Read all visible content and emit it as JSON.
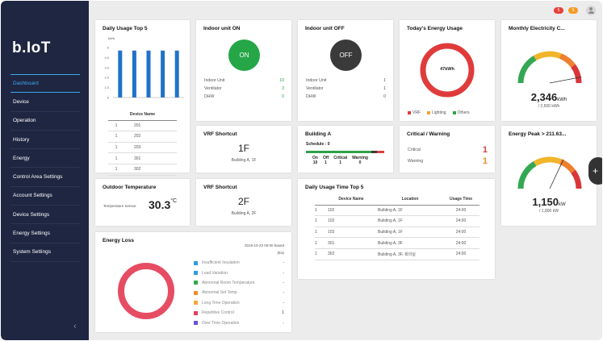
{
  "app": {
    "logo": "b.IoT"
  },
  "sidebar": {
    "items": [
      {
        "label": "Dashboard",
        "active": true
      },
      {
        "label": "Device"
      },
      {
        "label": "Operation"
      },
      {
        "label": "History"
      },
      {
        "label": "Energy"
      },
      {
        "label": "Control Area Settings"
      },
      {
        "label": "Account Settings"
      },
      {
        "label": "Device Settings"
      },
      {
        "label": "Energy Settings"
      },
      {
        "label": "System Settings"
      }
    ],
    "collapse_icon": "chevron-left-icon"
  },
  "topbar": {
    "alerts": [
      {
        "count": "5",
        "color": "#e8413a"
      },
      {
        "count": "5",
        "color": "#f29b26"
      }
    ],
    "user_icon": "user-avatar-icon"
  },
  "daily_usage": {
    "title": "Daily Usage Top 5",
    "unit": "kWh",
    "ticks": [
      "5",
      "4.0",
      "3.0",
      "2.0",
      "1.0",
      "0"
    ],
    "bars": [
      4.7,
      4.7,
      4.7,
      4.7,
      4.7
    ],
    "bar_color": "#1f72c8",
    "table_header": "Device Name",
    "rows": [
      {
        "no": "1",
        "name": "201"
      },
      {
        "no": "1",
        "name": "202"
      },
      {
        "no": "1",
        "name": "203"
      },
      {
        "no": "1",
        "name": "301"
      },
      {
        "no": "1",
        "name": "302"
      }
    ]
  },
  "indoor_on": {
    "title": "Indoor unit ON",
    "button": "ON",
    "color": "#25a647",
    "items": [
      {
        "label": "Indoor Unit",
        "value": "10"
      },
      {
        "label": "Ventilator",
        "value": "3"
      },
      {
        "label": "DHW",
        "value": "0"
      }
    ]
  },
  "indoor_off": {
    "title": "Indoor unit OFF",
    "button": "OFF",
    "items": [
      {
        "label": "Indoor Unit",
        "value": "1"
      },
      {
        "label": "Ventilator",
        "value": "1"
      },
      {
        "label": "DHW",
        "value": "0"
      }
    ]
  },
  "today_energy": {
    "title": "Today's Energy Usage",
    "center": "47kWh",
    "legend": [
      {
        "label": "VRF",
        "color": "#e03b3b"
      },
      {
        "label": "Lighting",
        "color": "#f0a22c"
      },
      {
        "label": "Others",
        "color": "#2ea34a"
      }
    ]
  },
  "monthly": {
    "title": "Monthly Electricity C...",
    "value": "2,346",
    "unit": "kWh",
    "limit": "/ 2,500 kWh",
    "level": 0.94
  },
  "vrf1": {
    "title": "VRF Shortcut",
    "floor": "1F",
    "loc": "Building A, 1F"
  },
  "vrf2": {
    "title": "VRF Shortcut",
    "floor": "2F",
    "loc": "Building A, 2F"
  },
  "building": {
    "title": "Building A",
    "schedule": "Schedule",
    "schedule_val": "0",
    "stats": [
      {
        "label": "On",
        "value": "10"
      },
      {
        "label": "Off",
        "value": "1"
      },
      {
        "label": "Critical",
        "value": "1"
      },
      {
        "label": "Warning",
        "value": "0"
      }
    ]
  },
  "critical": {
    "title": "Critical / Warning",
    "items": [
      {
        "label": "Critical",
        "value": "1"
      },
      {
        "label": "Warning",
        "value": "1"
      }
    ]
  },
  "peak": {
    "title": "Energy Peak > 211.63...",
    "value": "1,150",
    "unit": "kW",
    "limit": "/ 1,800 kW",
    "level": 0.64
  },
  "outdoor": {
    "title": "Outdoor Temperature",
    "sensor": "Temperature Sensor",
    "value": "30.3",
    "unit": "°C"
  },
  "usage_time": {
    "title": "Daily Usage Time Top 5",
    "headers": [
      "Device Name",
      "Location",
      "Usage Time"
    ],
    "rows": [
      {
        "no": "1",
        "name": "102",
        "loc": "Building A, 1F",
        "time": "24:00"
      },
      {
        "no": "1",
        "name": "102",
        "loc": "Building A, 1F",
        "time": "24:00"
      },
      {
        "no": "1",
        "name": "103",
        "loc": "Building A, 1F",
        "time": "24:00"
      },
      {
        "no": "1",
        "name": "301",
        "loc": "Building A, 3F",
        "time": "24:00"
      },
      {
        "no": "1",
        "name": "302",
        "loc": "Building A, 3F, 회의실",
        "time": "24:00"
      }
    ]
  },
  "energy_loss": {
    "title": "Energy Loss",
    "date": "2019-10-23 00:00 based",
    "unit": "(Ea)",
    "items": [
      {
        "label": "Insufficient Insulation",
        "value": "-",
        "color": "#2f9cdc"
      },
      {
        "label": "Load Variation",
        "value": "-",
        "color": "#2f9cdc"
      },
      {
        "label": "Abnormal Room Temperature",
        "value": "-",
        "color": "#35a84a"
      },
      {
        "label": "Abnormal Set Temp",
        "value": "-",
        "color": "#f08c2a"
      },
      {
        "label": "Long Time Operation",
        "value": "-",
        "color": "#f2a93a"
      },
      {
        "label": "Repetitive Control",
        "value": "1",
        "color": "#e3405a"
      },
      {
        "label": "Over Time Operation",
        "value": "-",
        "color": "#6a55d8"
      }
    ]
  },
  "fab": {
    "label": "+"
  }
}
